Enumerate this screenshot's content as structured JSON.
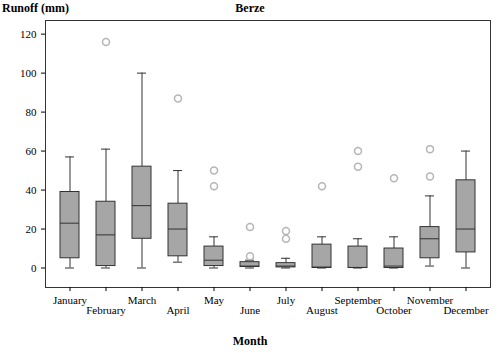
{
  "chart_data": {
    "type": "box",
    "title": "Berze",
    "x_label": "Month",
    "y_label": "Runoff (mm)",
    "categories": [
      "January",
      "February",
      "March",
      "April",
      "May",
      "June",
      "July",
      "August",
      "September",
      "October",
      "November",
      "December"
    ],
    "boxes": [
      {
        "min": 0,
        "q1": 5,
        "median": 23,
        "q3": 39,
        "max": 57,
        "outliers": []
      },
      {
        "min": 0,
        "q1": 1,
        "median": 17,
        "q3": 34,
        "max": 61,
        "outliers": [
          116
        ]
      },
      {
        "min": 0,
        "q1": 15,
        "median": 32,
        "q3": 52,
        "max": 100,
        "outliers": []
      },
      {
        "min": 3,
        "q1": 6,
        "median": 20,
        "q3": 33,
        "max": 50,
        "outliers": [
          87
        ]
      },
      {
        "min": 0,
        "q1": 1,
        "median": 4,
        "q3": 11,
        "max": 16,
        "outliers": [
          42,
          50
        ]
      },
      {
        "min": 0,
        "q1": 0.5,
        "median": 1,
        "q3": 3,
        "max": 4,
        "outliers": [
          6,
          21
        ]
      },
      {
        "min": 0,
        "q1": 0.3,
        "median": 1,
        "q3": 2.5,
        "max": 5,
        "outliers": [
          15,
          19
        ]
      },
      {
        "min": 0,
        "q1": 0,
        "median": 0.5,
        "q3": 12,
        "max": 16,
        "outliers": [
          42
        ]
      },
      {
        "min": 0,
        "q1": 0,
        "median": 0.3,
        "q3": 11,
        "max": 15,
        "outliers": [
          52,
          60
        ]
      },
      {
        "min": 0,
        "q1": 0,
        "median": 1,
        "q3": 10,
        "max": 16,
        "outliers": [
          46
        ]
      },
      {
        "min": 1,
        "q1": 5,
        "median": 15,
        "q3": 21,
        "max": 37,
        "outliers": [
          47,
          61
        ]
      },
      {
        "min": 0,
        "q1": 8,
        "median": 20,
        "q3": 45,
        "max": 60,
        "outliers": []
      }
    ],
    "color": "#a6a6a6",
    "ylim": [
      -10,
      127
    ],
    "yticks": [
      0,
      20,
      40,
      60,
      80,
      100,
      120
    ],
    "grid": false
  }
}
